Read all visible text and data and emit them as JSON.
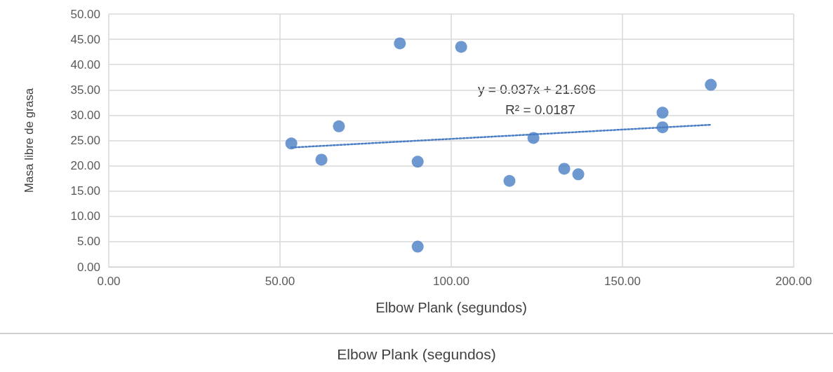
{
  "chart_data": {
    "type": "scatter",
    "xlabel": "Elbow Plank (segundos)",
    "ylabel": "Masa libre de grasa",
    "grid": true,
    "marker": "circle",
    "xlim": [
      0,
      200
    ],
    "xticks": [
      {
        "value": 0,
        "label": "0.00"
      },
      {
        "value": 50,
        "label": "50.00"
      },
      {
        "value": 100,
        "label": "100.00"
      },
      {
        "value": 150,
        "label": "150.00"
      },
      {
        "value": 200,
        "label": "200.00"
      }
    ],
    "ylim": [
      0,
      50
    ],
    "yticks": [
      {
        "value": 0,
        "label": "0.00"
      },
      {
        "value": 5,
        "label": "5.00"
      },
      {
        "value": 10,
        "label": "10.00"
      },
      {
        "value": 15,
        "label": "15.00"
      },
      {
        "value": 20,
        "label": "20.00"
      },
      {
        "value": 25,
        "label": "25.00"
      },
      {
        "value": 30,
        "label": "30.00"
      },
      {
        "value": 35,
        "label": "35.00"
      },
      {
        "value": 40,
        "label": "40.00"
      },
      {
        "value": 45,
        "label": "45.00"
      },
      {
        "value": 50,
        "label": "50.00"
      }
    ],
    "series": [
      {
        "color": "#4a7ec4",
        "x": [
          53.3,
          62.1,
          67.2,
          85.0,
          90.2,
          90.2,
          102.9,
          117.0,
          124.0,
          133.0,
          137.1,
          161.7,
          161.7,
          175.8
        ],
        "values": [
          24.4,
          21.2,
          27.8,
          44.2,
          20.8,
          4.0,
          43.5,
          17.0,
          25.5,
          19.4,
          18.3,
          30.5,
          27.6,
          36.0
        ]
      },
      {
        "type": "line",
        "color": "#4a7ec4",
        "line_style": "dotted",
        "marker": "none",
        "x": [
          53.3,
          175.8
        ],
        "values": [
          23.6,
          28.1
        ]
      }
    ],
    "annotations": [
      "y = 0.037x + 21.606",
      "R² = 0.0187",
      "Elbow Plank (segundos)"
    ]
  }
}
